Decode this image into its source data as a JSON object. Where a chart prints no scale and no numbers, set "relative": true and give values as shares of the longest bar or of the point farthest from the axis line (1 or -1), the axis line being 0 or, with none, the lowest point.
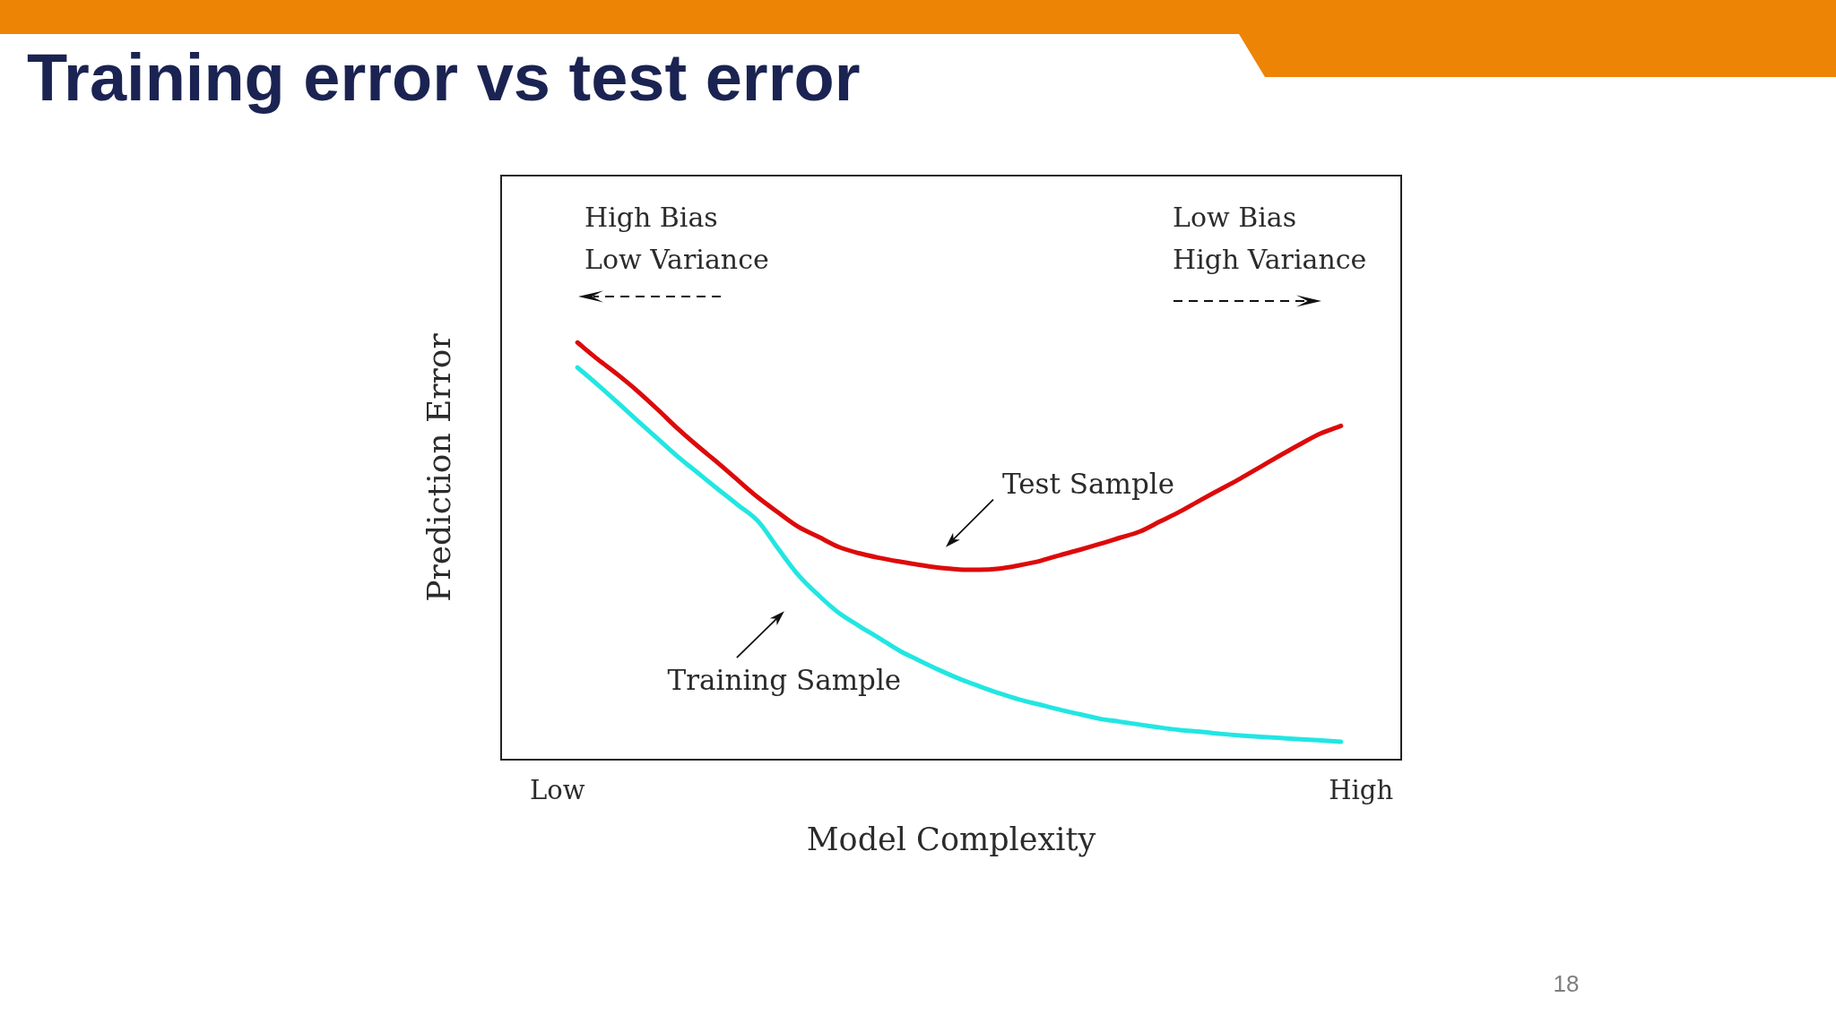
{
  "chart_data": {
    "type": "line",
    "title": "Training error vs test error",
    "xlabel": "Model Complexity",
    "ylabel": "Prediction Error",
    "relative": true,
    "categories": [
      "Low",
      null,
      null,
      null,
      null,
      null,
      null,
      null,
      null,
      null,
      null,
      null,
      null,
      null,
      null,
      null,
      null,
      null,
      null,
      null,
      null,
      null,
      null,
      null,
      null,
      null,
      null,
      null,
      null,
      null,
      null,
      null,
      null,
      null,
      null,
      null,
      null,
      null,
      null,
      null,
      "High"
    ],
    "series": [
      {
        "name": "Test Sample",
        "color": "#dd0a0a",
        "values": [
          null,
          1.0,
          0.96,
          0.923,
          0.883,
          0.839,
          0.793,
          0.751,
          0.711,
          0.669,
          0.628,
          0.592,
          0.558,
          0.534,
          0.51,
          0.495,
          0.484,
          0.475,
          0.467,
          0.46,
          0.456,
          0.455,
          0.458,
          0.466,
          0.476,
          0.49,
          0.503,
          0.517,
          0.532,
          0.547,
          0.571,
          0.595,
          0.622,
          0.648,
          0.674,
          0.702,
          0.73,
          0.757,
          0.782,
          0.8,
          null
        ]
      },
      {
        "name": "Training Sample",
        "color": "#22e6e2",
        "values": [
          null,
          0.94,
          0.899,
          0.856,
          0.812,
          0.769,
          0.726,
          0.687,
          0.648,
          0.61,
          0.571,
          0.505,
          0.442,
          0.394,
          0.352,
          0.321,
          0.292,
          0.262,
          0.238,
          0.215,
          0.194,
          0.176,
          0.159,
          0.144,
          0.132,
          0.12,
          0.109,
          0.098,
          0.091,
          0.084,
          0.077,
          0.071,
          0.067,
          0.062,
          0.058,
          0.055,
          0.052,
          0.049,
          0.046,
          0.043,
          null
        ]
      }
    ],
    "annotations": [
      "High Bias\nLow Variance",
      "Low Bias\nHigh Variance",
      "18"
    ]
  }
}
